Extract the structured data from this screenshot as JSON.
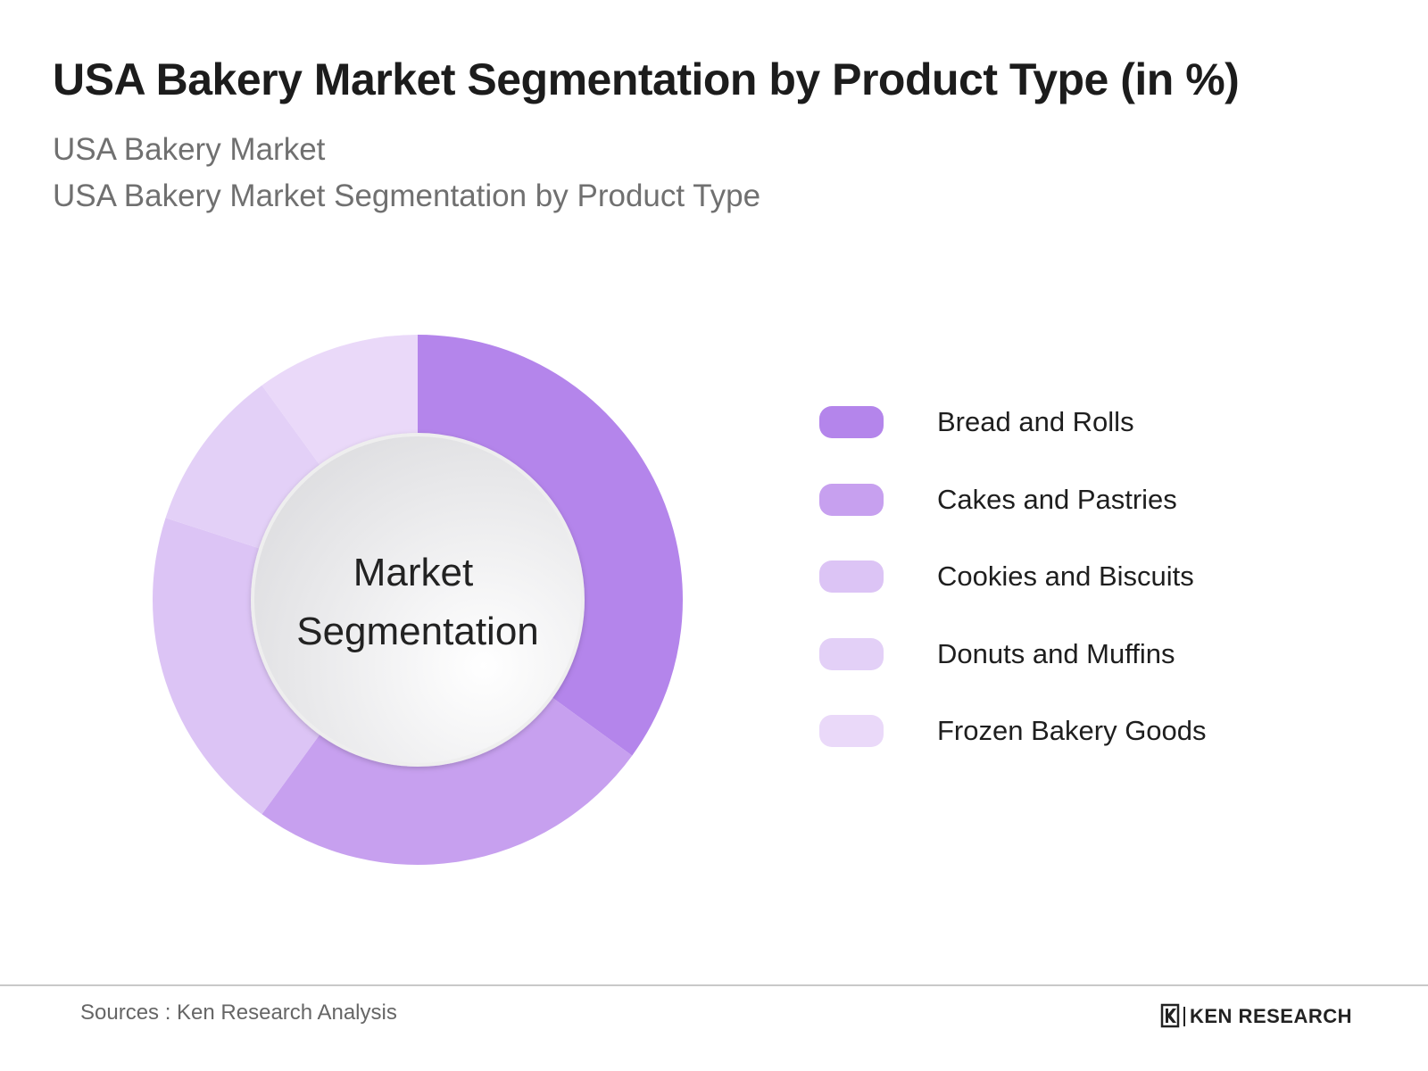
{
  "title": "USA Bakery Market Segmentation by Product Type (in %)",
  "subtitle_1": "USA Bakery Market",
  "subtitle_2": "USA Bakery Market Segmentation by Product Type",
  "center_label": [
    "Market",
    "Segmentation"
  ],
  "source": "Sources : Ken Research Analysis",
  "brand": "KEN RESEARCH",
  "chart_data": {
    "type": "pie",
    "donut": true,
    "categories": [
      "Bread and Rolls",
      "Cakes and Pastries",
      "Cookies and Biscuits",
      "Donuts and Muffins",
      "Frozen Bakery Goods"
    ],
    "values": [
      35,
      25,
      20,
      10,
      10
    ],
    "colors": [
      "#b485eb",
      "#c7a0ef",
      "#dcc4f5",
      "#e3d0f7",
      "#ead9f9"
    ],
    "legend_position": "right"
  }
}
